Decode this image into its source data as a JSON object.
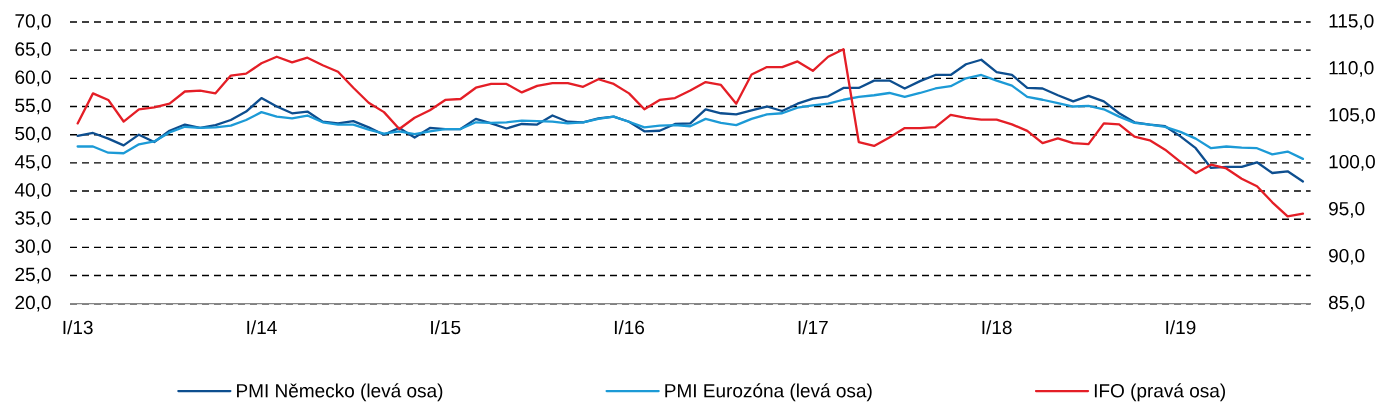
{
  "chart_data": {
    "type": "line",
    "categories": [
      "I/13",
      null,
      null,
      null,
      null,
      null,
      null,
      null,
      null,
      null,
      null,
      null,
      "I/14",
      null,
      null,
      null,
      null,
      null,
      null,
      null,
      null,
      null,
      null,
      null,
      "I/15",
      null,
      null,
      null,
      null,
      null,
      null,
      null,
      null,
      null,
      null,
      null,
      "I/16",
      null,
      null,
      null,
      null,
      null,
      null,
      null,
      null,
      null,
      null,
      null,
      "I/17",
      null,
      null,
      null,
      null,
      null,
      null,
      null,
      null,
      null,
      null,
      null,
      "I/18",
      null,
      null,
      null,
      null,
      null,
      null,
      null,
      null,
      null,
      null,
      null,
      "I/19",
      null,
      null,
      null,
      null,
      null,
      null,
      null,
      null
    ],
    "ylim": [
      20,
      70
    ],
    "yticks": [
      {
        "value": 20,
        "label": "20,0"
      },
      {
        "value": 25,
        "label": "25,0"
      },
      {
        "value": 30,
        "label": "30,0"
      },
      {
        "value": 35,
        "label": "35,0"
      },
      {
        "value": 40,
        "label": "40,0"
      },
      {
        "value": 45,
        "label": "45,0"
      },
      {
        "value": 50,
        "label": "50,0"
      },
      {
        "value": 55,
        "label": "55,0"
      },
      {
        "value": 60,
        "label": "60,0"
      },
      {
        "value": 65,
        "label": "65,0"
      },
      {
        "value": 70,
        "label": "70,0"
      }
    ],
    "y2lim": [
      85,
      115
    ],
    "y2ticks": [
      {
        "value": 85,
        "label": "85,0"
      },
      {
        "value": 90,
        "label": "90,0"
      },
      {
        "value": 95,
        "label": "95,0"
      },
      {
        "value": 100,
        "label": "100,0"
      },
      {
        "value": 105,
        "label": "105,0"
      },
      {
        "value": 110,
        "label": "110,0"
      },
      {
        "value": 115,
        "label": "115,0"
      }
    ],
    "grid": "y",
    "legend": "bottom",
    "marker": "none",
    "line_style": "solid",
    "series": [
      {
        "name": "PMI Německo (levá osa)",
        "color": "#0d4e8f",
        "values": [
          49.8,
          50.3,
          49.3,
          48.1,
          50.0,
          48.7,
          50.7,
          51.8,
          51.2,
          51.7,
          52.6,
          54.1,
          56.5,
          55.0,
          53.8,
          54.1,
          52.3,
          52.0,
          52.4,
          51.3,
          50.0,
          51.2,
          49.5,
          51.2,
          51.0,
          51.0,
          52.8,
          52.0,
          51.1,
          51.9,
          51.8,
          53.4,
          52.3,
          52.2,
          52.9,
          53.2,
          52.3,
          50.6,
          50.7,
          51.9,
          52.0,
          54.5,
          53.8,
          53.6,
          54.3,
          55.0,
          54.2,
          55.5,
          56.4,
          56.8,
          58.3,
          58.3,
          59.6,
          59.6,
          58.2,
          59.5,
          60.6,
          60.6,
          62.5,
          63.3,
          61.1,
          60.6,
          58.3,
          58.2,
          57.0,
          55.9,
          56.9,
          55.9,
          53.8,
          52.2,
          51.8,
          51.5,
          49.7,
          47.6,
          44.1,
          44.3,
          44.3,
          45.1,
          43.2,
          43.5,
          41.7
        ]
      },
      {
        "name": "PMI Eurozóna (levá osa)",
        "color": "#1c9ad6",
        "values": [
          47.9,
          47.9,
          46.8,
          46.7,
          48.3,
          48.8,
          50.4,
          51.4,
          51.2,
          51.3,
          51.6,
          52.6,
          54.0,
          53.2,
          52.9,
          53.4,
          52.2,
          51.8,
          51.8,
          50.9,
          50.2,
          50.6,
          50.1,
          50.6,
          51.0,
          51.0,
          52.2,
          52.1,
          52.2,
          52.5,
          52.4,
          52.3,
          52.0,
          52.2,
          52.8,
          53.2,
          52.3,
          51.3,
          51.6,
          51.7,
          51.5,
          52.8,
          52.1,
          51.7,
          52.8,
          53.6,
          53.8,
          54.8,
          55.2,
          55.5,
          56.2,
          56.7,
          57.0,
          57.4,
          56.7,
          57.4,
          58.2,
          58.6,
          60.0,
          60.6,
          59.6,
          58.7,
          56.7,
          56.2,
          55.6,
          55.0,
          55.1,
          54.5,
          53.2,
          52.1,
          51.8,
          51.4,
          50.5,
          49.3,
          47.6,
          47.9,
          47.7,
          47.6,
          46.5,
          47.0,
          45.7
        ]
      },
      {
        "name": "IFO (pravá osa)",
        "color": "#e41e26",
        "axis": "y2",
        "values": [
          104.2,
          107.4,
          106.7,
          104.4,
          105.7,
          105.9,
          106.3,
          107.6,
          107.7,
          107.4,
          109.3,
          109.5,
          110.6,
          111.3,
          110.7,
          111.2,
          110.4,
          109.7,
          108.0,
          106.4,
          105.4,
          103.6,
          104.8,
          105.6,
          106.7,
          106.8,
          108.0,
          108.4,
          108.4,
          107.5,
          108.2,
          108.5,
          108.5,
          108.1,
          108.9,
          108.4,
          107.4,
          105.7,
          106.7,
          106.9,
          107.7,
          108.6,
          108.3,
          106.3,
          109.4,
          110.2,
          110.2,
          110.8,
          109.8,
          111.3,
          112.1,
          102.2,
          101.8,
          102.7,
          103.7,
          103.7,
          103.8,
          105.1,
          104.8,
          104.6,
          104.6,
          104.1,
          103.4,
          102.1,
          102.6,
          102.1,
          102.0,
          104.2,
          104.1,
          102.8,
          102.4,
          101.4,
          100.1,
          98.9,
          99.8,
          99.4,
          98.3,
          97.5,
          95.8,
          94.3,
          94.6
        ]
      }
    ]
  }
}
